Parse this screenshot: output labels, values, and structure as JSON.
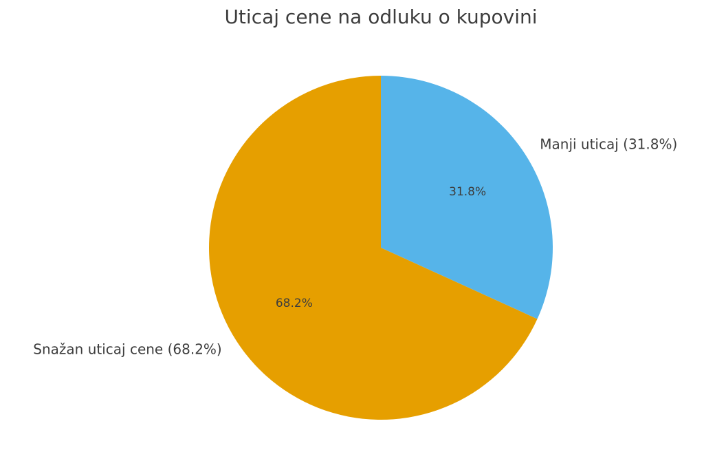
{
  "chart_data": {
    "type": "pie",
    "title": "Uticaj cene na odluku o kupovini",
    "categories": [
      "Manji uticaj (31.8%)",
      "Snažan uticaj cene (68.2%)"
    ],
    "values": [
      31.8,
      68.2
    ],
    "value_labels": [
      "31.8%",
      "68.2%"
    ],
    "colors": [
      "#56B4E9",
      "#E69F00"
    ]
  }
}
